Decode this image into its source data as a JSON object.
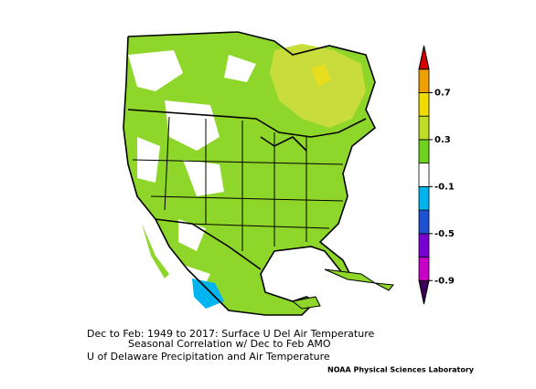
{
  "map": {
    "caption_line1": "Dec to Feb: 1949 to 2017: Surface U Del Air Temperature",
    "caption_line2": "Seasonal Correlation w/ Dec to Feb AMO",
    "caption_line3": "U of Delaware Precipitation and Air Temperature",
    "credit": "NOAA Physical Sciences Laboratory",
    "colorbar": {
      "lim": [
        -1.1,
        1.1
      ],
      "ticks": [
        -0.9,
        -0.5,
        -0.1,
        0.3,
        0.7
      ],
      "colors": [
        "#3c005a",
        "#c800c8",
        "#7800d2",
        "#1e50d2",
        "#00b4f0",
        "#ffffff",
        "#6ed21e",
        "#bede28",
        "#f0dc00",
        "#f0a000",
        "#d20000"
      ]
    }
  }
}
